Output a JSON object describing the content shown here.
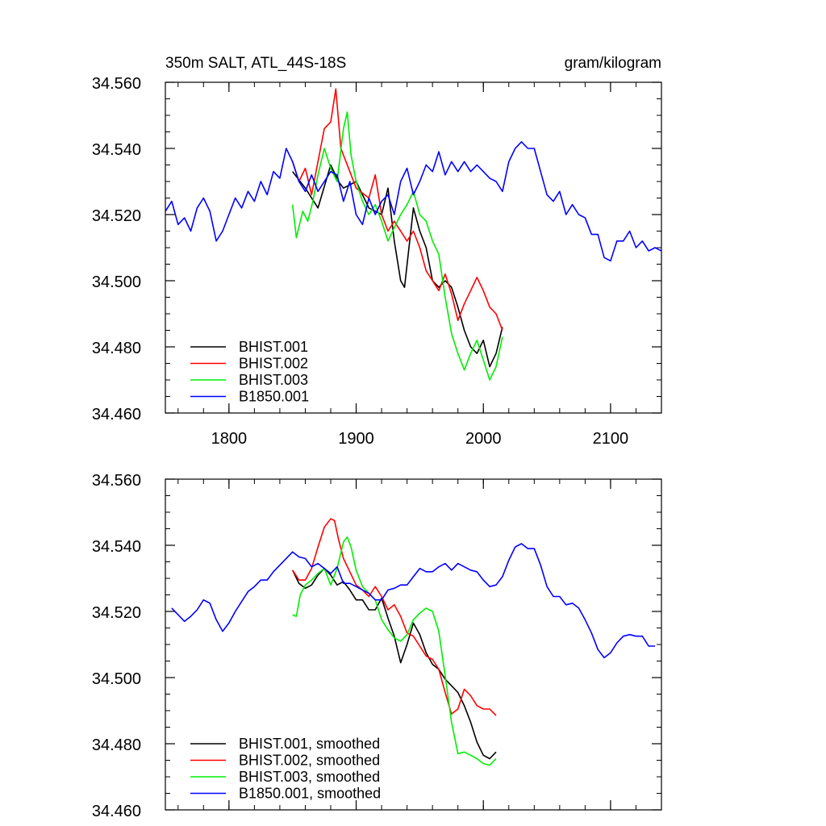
{
  "chart_data": [
    {
      "type": "line",
      "title_left": "350m SALT, ATL_44S-18S",
      "title_right": "gram/kilogram",
      "xlim": [
        1750,
        2140
      ],
      "ylim": [
        34.46,
        34.56
      ],
      "x_ticks": [
        1800,
        1900,
        2000,
        2100
      ],
      "x_tick_labels": [
        "1800",
        "1900",
        "2000",
        "2100"
      ],
      "y_ticks": [
        34.46,
        34.48,
        34.5,
        34.52,
        34.54,
        34.56
      ],
      "y_tick_labels": [
        "34.460",
        "34.480",
        "34.500",
        "34.520",
        "34.540",
        "34.560"
      ],
      "grid": false,
      "legend_position": "bottom-left",
      "series": [
        {
          "name": "BHIST.001",
          "color": "#000000",
          "x": [
            1850,
            1860,
            1870,
            1880,
            1886,
            1890,
            1900,
            1910,
            1920,
            1925,
            1930,
            1935,
            1938,
            1945,
            1950,
            1955,
            1960,
            1965,
            1970,
            1975,
            1980,
            1985,
            1990,
            1995,
            2000,
            2005,
            2010,
            2015
          ],
          "values": [
            34.533,
            34.528,
            34.522,
            34.535,
            34.53,
            34.528,
            34.53,
            34.522,
            34.52,
            34.528,
            34.512,
            34.5,
            34.498,
            34.522,
            34.515,
            34.51,
            34.5,
            34.498,
            34.5,
            34.498,
            34.492,
            34.485,
            34.48,
            34.478,
            34.482,
            34.474,
            34.478,
            34.486
          ]
        },
        {
          "name": "BHIST.002",
          "color": "#ff0000",
          "x": [
            1850,
            1855,
            1860,
            1865,
            1870,
            1875,
            1880,
            1884,
            1888,
            1895,
            1900,
            1910,
            1915,
            1920,
            1925,
            1930,
            1940,
            1945,
            1950,
            1955,
            1960,
            1965,
            1970,
            1975,
            1980,
            1985,
            1990,
            1995,
            2000,
            2005,
            2010,
            2015
          ],
          "values": [
            34.536,
            34.53,
            34.534,
            34.526,
            34.536,
            34.546,
            34.548,
            34.558,
            34.54,
            34.533,
            34.528,
            34.525,
            34.532,
            34.52,
            34.515,
            34.518,
            34.512,
            34.515,
            34.51,
            34.503,
            34.5,
            34.497,
            34.502,
            34.496,
            34.488,
            34.493,
            34.497,
            34.501,
            34.497,
            34.492,
            34.49,
            34.485
          ]
        },
        {
          "name": "BHIST.003",
          "color": "#00ee00",
          "x": [
            1850,
            1853,
            1858,
            1862,
            1866,
            1870,
            1875,
            1880,
            1885,
            1890,
            1893,
            1896,
            1900,
            1905,
            1910,
            1915,
            1920,
            1925,
            1930,
            1935,
            1940,
            1945,
            1950,
            1955,
            1960,
            1965,
            1970,
            1975,
            1980,
            1985,
            1990,
            1995,
            2000,
            2005,
            2010,
            2015
          ],
          "values": [
            34.523,
            34.513,
            34.521,
            34.518,
            34.524,
            34.532,
            34.54,
            34.534,
            34.53,
            34.546,
            34.551,
            34.538,
            34.53,
            34.524,
            34.52,
            34.523,
            34.518,
            34.512,
            34.516,
            34.52,
            34.523,
            34.527,
            34.52,
            34.518,
            34.512,
            34.508,
            34.495,
            34.484,
            34.478,
            34.473,
            34.478,
            34.482,
            34.476,
            34.47,
            34.474,
            34.483
          ]
        },
        {
          "name": "B1850.001",
          "color": "#0000ff",
          "x": [
            1750,
            1755,
            1760,
            1765,
            1770,
            1775,
            1780,
            1785,
            1790,
            1795,
            1800,
            1805,
            1810,
            1815,
            1820,
            1825,
            1830,
            1835,
            1840,
            1845,
            1850,
            1855,
            1860,
            1865,
            1870,
            1875,
            1880,
            1885,
            1890,
            1895,
            1900,
            1905,
            1910,
            1915,
            1920,
            1925,
            1930,
            1935,
            1940,
            1945,
            1950,
            1955,
            1960,
            1965,
            1970,
            1975,
            1980,
            1985,
            1990,
            1995,
            2000,
            2005,
            2010,
            2015,
            2020,
            2025,
            2030,
            2035,
            2040,
            2045,
            2050,
            2055,
            2060,
            2065,
            2070,
            2075,
            2080,
            2085,
            2090,
            2095,
            2100,
            2105,
            2110,
            2115,
            2120,
            2125,
            2130,
            2135,
            2140
          ],
          "values": [
            34.521,
            34.524,
            34.517,
            34.519,
            34.515,
            34.522,
            34.525,
            34.521,
            34.512,
            34.515,
            34.52,
            34.525,
            34.522,
            34.527,
            34.524,
            34.53,
            34.526,
            34.533,
            34.531,
            34.54,
            34.536,
            34.53,
            34.527,
            34.532,
            34.527,
            34.53,
            34.533,
            34.532,
            34.524,
            34.53,
            34.52,
            34.517,
            34.525,
            34.52,
            34.524,
            34.526,
            34.52,
            34.53,
            34.534,
            34.526,
            34.53,
            34.535,
            34.533,
            34.539,
            34.532,
            34.536,
            34.533,
            34.536,
            34.533,
            34.535,
            34.533,
            34.531,
            34.53,
            34.527,
            34.536,
            34.54,
            34.542,
            34.54,
            34.54,
            34.533,
            34.526,
            34.524,
            34.527,
            34.52,
            34.523,
            34.52,
            34.519,
            34.514,
            34.514,
            34.507,
            34.506,
            34.512,
            34.512,
            34.515,
            34.51,
            34.512,
            34.509,
            34.51,
            34.509
          ]
        }
      ]
    },
    {
      "type": "line",
      "title_left": "",
      "title_right": "",
      "xlim": [
        1750,
        2140
      ],
      "ylim": [
        34.46,
        34.56
      ],
      "x_ticks": [
        1800,
        1900,
        2000,
        2100
      ],
      "x_tick_labels": [],
      "y_ticks": [
        34.46,
        34.48,
        34.5,
        34.52,
        34.54,
        34.56
      ],
      "y_tick_labels": [
        "34.460",
        "34.480",
        "34.500",
        "34.520",
        "34.540",
        "34.560"
      ],
      "grid": false,
      "legend_position": "bottom-left",
      "series": [
        {
          "name": "BHIST.001, smoothed",
          "color": "#000000",
          "x": [
            1850,
            1855,
            1860,
            1865,
            1870,
            1875,
            1880,
            1885,
            1890,
            1895,
            1900,
            1905,
            1910,
            1915,
            1920,
            1925,
            1930,
            1935,
            1940,
            1945,
            1950,
            1955,
            1960,
            1965,
            1970,
            1975,
            1980,
            1985,
            1990,
            1995,
            2000,
            2005,
            2010
          ],
          "values": [
            34.5325,
            34.5285,
            34.527,
            34.528,
            34.531,
            34.533,
            34.531,
            34.528,
            34.529,
            34.5265,
            34.5235,
            34.5235,
            34.5205,
            34.5205,
            34.524,
            34.518,
            34.5125,
            34.5045,
            34.51,
            34.5165,
            34.513,
            34.5075,
            34.504,
            34.5025,
            34.4995,
            34.4975,
            34.4955,
            34.4915,
            34.4865,
            34.4805,
            34.4765,
            34.4755,
            34.4775
          ]
        },
        {
          "name": "BHIST.002, smoothed",
          "color": "#ff0000",
          "x": [
            1850,
            1855,
            1860,
            1865,
            1870,
            1875,
            1880,
            1883,
            1886,
            1890,
            1895,
            1900,
            1905,
            1910,
            1915,
            1920,
            1925,
            1930,
            1935,
            1940,
            1945,
            1950,
            1955,
            1960,
            1965,
            1970,
            1975,
            1980,
            1985,
            1990,
            1995,
            2000,
            2005,
            2010
          ],
          "values": [
            34.5325,
            34.5295,
            34.5295,
            34.533,
            34.5395,
            34.5455,
            34.548,
            34.5475,
            34.542,
            34.536,
            34.532,
            34.528,
            34.5265,
            34.5245,
            34.5275,
            34.5245,
            34.5205,
            34.522,
            34.5185,
            34.5135,
            34.5125,
            34.5095,
            34.5065,
            34.5055,
            34.5025,
            34.4955,
            34.489,
            34.4905,
            34.4965,
            34.4945,
            34.4915,
            34.4905,
            34.4905,
            34.4885
          ]
        },
        {
          "name": "BHIST.003, smoothed",
          "color": "#00ee00",
          "x": [
            1850,
            1853,
            1856,
            1860,
            1865,
            1870,
            1875,
            1880,
            1885,
            1890,
            1893,
            1896,
            1900,
            1905,
            1910,
            1915,
            1920,
            1925,
            1930,
            1935,
            1940,
            1945,
            1950,
            1955,
            1960,
            1965,
            1970,
            1975,
            1980,
            1985,
            1990,
            1995,
            2000,
            2005,
            2010
          ],
          "values": [
            34.519,
            34.5185,
            34.525,
            34.528,
            34.5295,
            34.5315,
            34.533,
            34.528,
            34.533,
            34.541,
            34.5425,
            34.5395,
            34.5325,
            34.5275,
            34.5255,
            34.5235,
            34.5175,
            34.5145,
            34.512,
            34.511,
            34.513,
            34.5175,
            34.5195,
            34.521,
            34.52,
            34.514,
            34.5005,
            34.4865,
            34.477,
            34.4775,
            34.4765,
            34.4755,
            34.474,
            34.4735,
            34.4755
          ]
        },
        {
          "name": "B1850.001, smoothed",
          "color": "#0000ff",
          "x": [
            1755,
            1760,
            1765,
            1770,
            1775,
            1780,
            1785,
            1790,
            1795,
            1800,
            1805,
            1810,
            1815,
            1820,
            1825,
            1830,
            1835,
            1840,
            1845,
            1850,
            1855,
            1860,
            1865,
            1870,
            1875,
            1880,
            1885,
            1890,
            1895,
            1900,
            1905,
            1910,
            1915,
            1920,
            1925,
            1930,
            1935,
            1940,
            1945,
            1950,
            1955,
            1960,
            1965,
            1970,
            1975,
            1980,
            1985,
            1990,
            1995,
            2000,
            2005,
            2010,
            2015,
            2020,
            2025,
            2030,
            2035,
            2040,
            2045,
            2050,
            2055,
            2060,
            2065,
            2070,
            2075,
            2080,
            2085,
            2090,
            2095,
            2100,
            2105,
            2110,
            2115,
            2120,
            2125,
            2130,
            2135
          ],
          "values": [
            34.521,
            34.519,
            34.517,
            34.5185,
            34.5205,
            34.5235,
            34.5225,
            34.5175,
            34.514,
            34.5165,
            34.52,
            34.523,
            34.526,
            34.5275,
            34.5295,
            34.5295,
            34.532,
            34.534,
            34.536,
            34.538,
            34.5365,
            34.536,
            34.5335,
            34.5345,
            34.533,
            34.5315,
            34.5335,
            34.5285,
            34.5285,
            34.5275,
            34.5265,
            34.5255,
            34.5235,
            34.5235,
            34.5265,
            34.527,
            34.528,
            34.528,
            34.5305,
            34.533,
            34.532,
            34.532,
            34.5335,
            34.5345,
            34.5325,
            34.5345,
            34.5335,
            34.5325,
            34.532,
            34.5295,
            34.5275,
            34.528,
            34.5305,
            34.5355,
            34.5395,
            34.5405,
            34.539,
            34.539,
            34.534,
            34.5275,
            34.5245,
            34.5245,
            34.522,
            34.5225,
            34.521,
            34.5175,
            34.5135,
            34.5085,
            34.506,
            34.5075,
            34.5105,
            34.5125,
            34.513,
            34.5125,
            34.5125,
            34.5095,
            34.5095
          ]
        }
      ]
    }
  ]
}
